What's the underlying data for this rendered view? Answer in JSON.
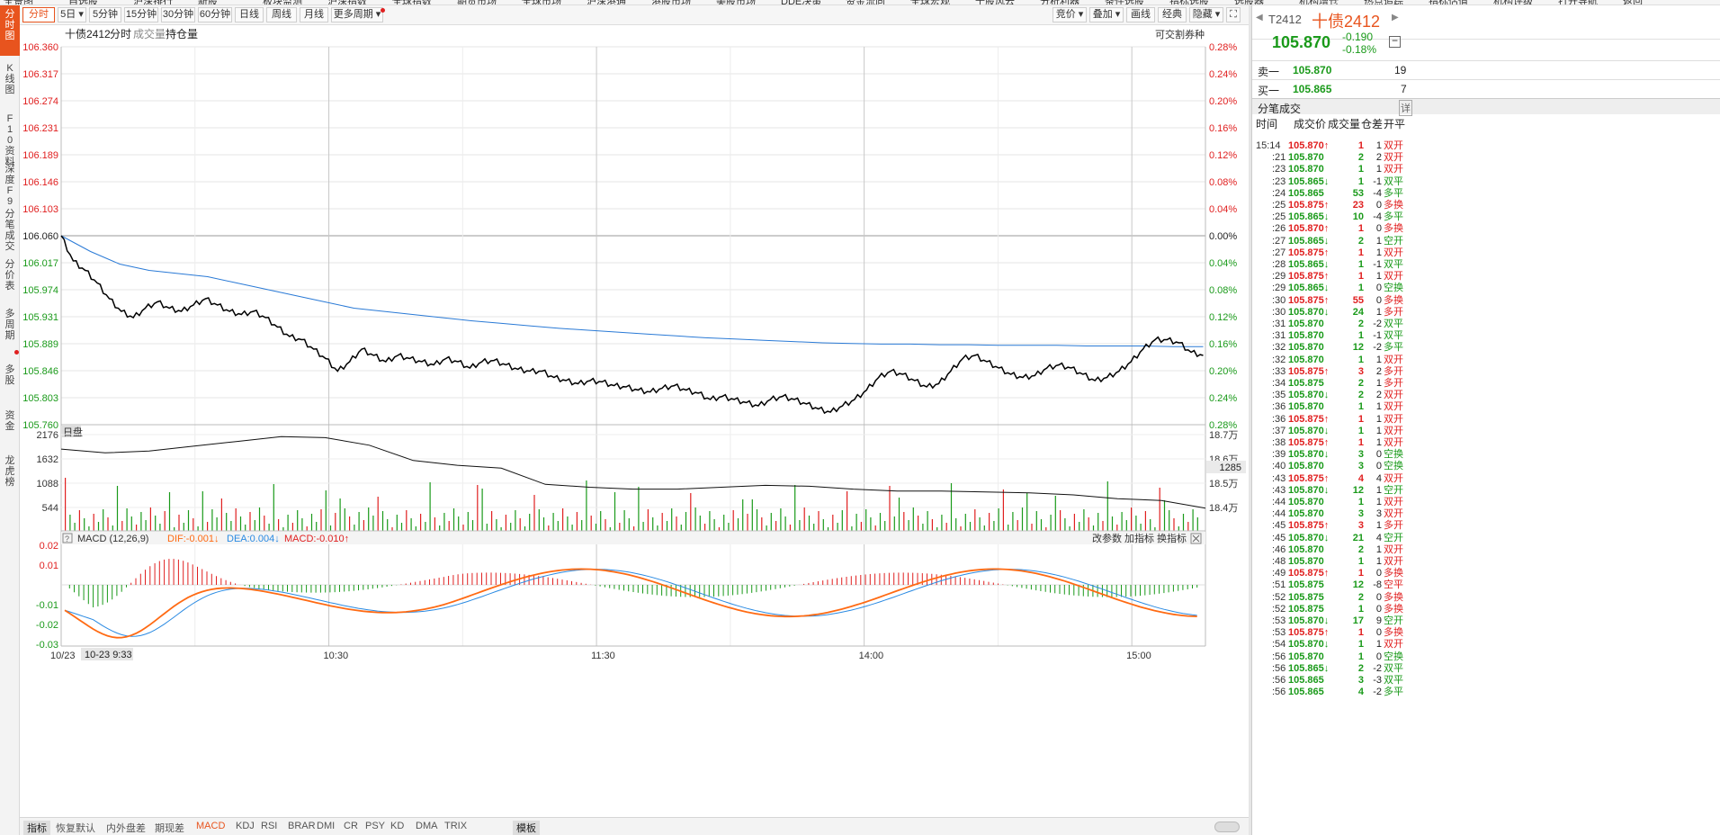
{
  "topbar": {
    "items": [
      "全景图",
      "自选股",
      "沪深排行",
      "新股",
      "板块监测",
      "沪深指数",
      "全球指数",
      "期货市场",
      "全球市场",
      "沪深港通",
      "港股市场",
      "美股市场",
      "DDE决策",
      "资金流向",
      "全球宏观",
      "千股风云",
      "分析利器",
      "条件选股",
      "指标选股",
      "选股器",
      "机构增仓",
      "热点追踪",
      "指标估值",
      "机构评级",
      "打开导航",
      "返回"
    ]
  },
  "sidebar": {
    "items": [
      "分时图",
      "K线图",
      "F10资料",
      "深度F9",
      "分笔成交",
      "分价表",
      "多周期",
      "多股",
      "资金",
      "龙虎榜"
    ],
    "active": "分时图"
  },
  "period_tabs": {
    "items": [
      "分时",
      "5日",
      "5分钟",
      "15分钟",
      "30分钟",
      "60分钟",
      "日线",
      "周线",
      "月线",
      "更多周期"
    ],
    "active": "分时"
  },
  "toolbar_right": {
    "items": [
      "竞价",
      "叠加",
      "画线",
      "经典",
      "隐藏"
    ]
  },
  "chart_header": {
    "symbol": "十债2412",
    "tabs": [
      "分时",
      "成交量",
      "持仓量"
    ],
    "right_label": "可交割券种"
  },
  "colors": {
    "up": "#e02020",
    "down": "#1a9a1a",
    "price_line": "#000000",
    "avg_line": "#2a7ad6",
    "accent": "#e8541e",
    "dif": "#ff6a13",
    "dea": "#2a8ae2"
  },
  "chart_data": [
    {
      "type": "line",
      "name": "intraday-price",
      "x_ticks": [
        "10/23",
        "10:30",
        "11:30",
        "14:00",
        "15:00"
      ],
      "ylim": [
        105.76,
        106.36
      ],
      "y_ticks_left": [
        "106.360",
        "106.317",
        "106.274",
        "106.231",
        "106.189",
        "106.146",
        "106.103",
        "106.060",
        "106.017",
        "105.974",
        "105.931",
        "105.889",
        "105.846",
        "105.803",
        "105.760"
      ],
      "y_ticks_right": [
        "0.28%",
        "0.24%",
        "0.20%",
        "0.16%",
        "0.12%",
        "0.08%",
        "0.04%",
        "0.00%",
        "0.04%",
        "0.08%",
        "0.12%",
        "0.16%",
        "0.20%",
        "0.24%",
        "0.28%"
      ],
      "prev_close": 106.06,
      "series": [
        {
          "values": [
            106.06,
            106.02,
            106.005,
            105.985,
            105.96,
            105.94,
            105.93,
            105.945,
            105.955,
            105.945,
            105.94,
            105.95,
            105.96,
            105.95,
            105.94,
            105.935,
            105.94,
            105.93,
            105.915,
            105.9,
            105.895,
            105.88,
            105.865,
            105.845,
            105.86,
            105.88,
            105.87,
            105.86,
            105.87,
            105.865,
            105.86,
            105.855,
            105.865,
            105.86,
            105.85,
            105.86,
            105.862,
            105.855,
            105.848,
            105.845,
            105.845,
            105.835,
            105.83,
            105.825,
            105.83,
            105.828,
            105.822,
            105.82,
            105.815,
            105.812,
            105.818,
            105.822,
            105.815,
            105.81,
            105.8,
            105.805,
            105.8,
            105.795,
            105.79,
            105.8,
            105.805,
            105.8,
            105.793,
            105.785,
            105.78,
            105.79,
            105.8,
            105.815,
            105.835,
            105.845,
            105.84,
            105.83,
            105.82,
            105.825,
            105.845,
            105.865,
            105.87,
            105.86,
            105.85,
            105.84,
            105.835,
            105.838,
            105.85,
            105.855,
            105.85,
            105.84,
            105.83,
            105.835,
            105.845,
            105.86,
            105.88,
            105.895,
            105.895,
            105.89,
            105.875,
            105.87
          ]
        },
        {
          "values": [
            106.06,
            106.035,
            106.015,
            106.005,
            106.0,
            105.995,
            105.985,
            105.975,
            105.965,
            105.955,
            105.945,
            105.94,
            105.935,
            105.93,
            105.925,
            105.921,
            105.917,
            105.913,
            105.91,
            105.907,
            105.904,
            105.901,
            105.898,
            105.896,
            105.894,
            105.892,
            105.89,
            105.889,
            105.888,
            105.888,
            105.887,
            105.887,
            105.886,
            105.886,
            105.886,
            105.885,
            105.885,
            105.885,
            105.884,
            105.884
          ]
        }
      ]
    },
    {
      "type": "bar",
      "name": "volume",
      "ylim": [
        0,
        2176
      ],
      "y_ticks_left": [
        "2176",
        "1632",
        "1088",
        "544"
      ],
      "y_ticks_right": [
        "18.7万",
        "18.6万",
        "18.5万",
        "18.4万"
      ],
      "open_interest_label": "1285",
      "legend": "日盘"
    },
    {
      "type": "bar",
      "name": "macd",
      "title": "MACD (12,26,9)",
      "dif_label": "DIF:-0.001",
      "dea_label": "DEA:0.004",
      "macd_label": "MACD:-0.010",
      "right_buttons": [
        "改参数",
        "加指标",
        "换指标"
      ],
      "ylim": [
        -0.03,
        0.02
      ],
      "y_ticks_left": [
        "0.02",
        "0.01",
        "-0.01",
        "-0.02",
        "-0.03"
      ]
    }
  ],
  "x_cursor_label": "10-23 9:33",
  "bottom_tabs": {
    "items": [
      "指标",
      "恢复默认",
      "内外盘差",
      "期现差",
      "MACD",
      "KDJ",
      "RSI",
      "BRAR",
      "DMI",
      "CR",
      "PSY",
      "KD",
      "DMA",
      "TRIX",
      "模板"
    ],
    "active": "MACD"
  },
  "quote": {
    "code": "T2412",
    "name": "十债2412",
    "price": "105.870",
    "change": "-0.190",
    "change_pct": "-0.18%",
    "ask_label": "卖一",
    "ask_price": "105.870",
    "ask_vol": "19",
    "bid_label": "买一",
    "bid_price": "105.865",
    "bid_vol": "7",
    "ticks_title": "分笔成交",
    "detail_label": "详",
    "columns": [
      "时间",
      "成交价",
      "成交量",
      "仓差",
      "开平"
    ]
  },
  "ticks": [
    [
      "15:14",
      "105.870",
      "up",
      "1",
      "1",
      "双开",
      "r"
    ],
    [
      ":21",
      "105.870",
      "",
      "2",
      "2",
      "双开",
      "r"
    ],
    [
      ":23",
      "105.870",
      "",
      "1",
      "1",
      "双开",
      "r"
    ],
    [
      ":23",
      "105.865",
      "dn",
      "1",
      "-1",
      "双平",
      "g"
    ],
    [
      ":24",
      "105.865",
      "",
      "53",
      "-4",
      "多平",
      "g"
    ],
    [
      ":25",
      "105.875",
      "up",
      "23",
      "0",
      "多换",
      "r"
    ],
    [
      ":25",
      "105.865",
      "dn",
      "10",
      "-4",
      "多平",
      "g"
    ],
    [
      ":26",
      "105.870",
      "up",
      "1",
      "0",
      "多换",
      "r"
    ],
    [
      ":27",
      "105.865",
      "dn",
      "2",
      "1",
      "空开",
      "g"
    ],
    [
      ":27",
      "105.875",
      "up",
      "1",
      "1",
      "双开",
      "r"
    ],
    [
      ":28",
      "105.865",
      "dn",
      "1",
      "-1",
      "双平",
      "g"
    ],
    [
      ":29",
      "105.875",
      "up",
      "1",
      "1",
      "双开",
      "r"
    ],
    [
      ":29",
      "105.865",
      "dn",
      "1",
      "0",
      "空换",
      "g"
    ],
    [
      ":30",
      "105.875",
      "up",
      "55",
      "0",
      "多换",
      "r"
    ],
    [
      ":30",
      "105.870",
      "dn",
      "24",
      "1",
      "多开",
      "r"
    ],
    [
      ":31",
      "105.870",
      "",
      "2",
      "-2",
      "双平",
      "g"
    ],
    [
      ":31",
      "105.870",
      "",
      "1",
      "-1",
      "双平",
      "g"
    ],
    [
      ":32",
      "105.870",
      "",
      "12",
      "-2",
      "多平",
      "g"
    ],
    [
      ":32",
      "105.870",
      "",
      "1",
      "1",
      "双开",
      "r"
    ],
    [
      ":33",
      "105.875",
      "up",
      "3",
      "2",
      "多开",
      "r"
    ],
    [
      ":34",
      "105.875",
      "",
      "2",
      "1",
      "多开",
      "r"
    ],
    [
      ":35",
      "105.870",
      "dn",
      "2",
      "2",
      "双开",
      "r"
    ],
    [
      ":36",
      "105.870",
      "",
      "1",
      "1",
      "双开",
      "r"
    ],
    [
      ":36",
      "105.875",
      "up",
      "1",
      "1",
      "双开",
      "r"
    ],
    [
      ":37",
      "105.870",
      "dn",
      "1",
      "1",
      "双开",
      "r"
    ],
    [
      ":38",
      "105.875",
      "up",
      "1",
      "1",
      "双开",
      "r"
    ],
    [
      ":39",
      "105.870",
      "dn",
      "3",
      "0",
      "空换",
      "g"
    ],
    [
      ":40",
      "105.870",
      "",
      "3",
      "0",
      "空换",
      "g"
    ],
    [
      ":43",
      "105.875",
      "up",
      "4",
      "4",
      "双开",
      "r"
    ],
    [
      ":43",
      "105.870",
      "dn",
      "12",
      "1",
      "空开",
      "g"
    ],
    [
      ":44",
      "105.870",
      "",
      "1",
      "1",
      "双开",
      "r"
    ],
    [
      ":44",
      "105.870",
      "",
      "3",
      "3",
      "双开",
      "r"
    ],
    [
      ":45",
      "105.875",
      "up",
      "3",
      "1",
      "多开",
      "r"
    ],
    [
      ":45",
      "105.870",
      "dn",
      "21",
      "4",
      "空开",
      "g"
    ],
    [
      ":46",
      "105.870",
      "",
      "2",
      "1",
      "双开",
      "r"
    ],
    [
      ":48",
      "105.870",
      "",
      "1",
      "1",
      "双开",
      "r"
    ],
    [
      ":49",
      "105.875",
      "up",
      "1",
      "0",
      "多换",
      "r"
    ],
    [
      ":51",
      "105.875",
      "",
      "12",
      "-8",
      "空平",
      "r"
    ],
    [
      ":52",
      "105.875",
      "",
      "2",
      "0",
      "多换",
      "r"
    ],
    [
      ":52",
      "105.875",
      "",
      "1",
      "0",
      "多换",
      "r"
    ],
    [
      ":53",
      "105.870",
      "dn",
      "17",
      "9",
      "空开",
      "g"
    ],
    [
      ":53",
      "105.875",
      "up",
      "1",
      "0",
      "多换",
      "r"
    ],
    [
      ":54",
      "105.870",
      "dn",
      "1",
      "1",
      "双开",
      "r"
    ],
    [
      ":56",
      "105.870",
      "",
      "1",
      "0",
      "空换",
      "g"
    ],
    [
      ":56",
      "105.865",
      "dn",
      "2",
      "-2",
      "双平",
      "g"
    ],
    [
      ":56",
      "105.865",
      "",
      "3",
      "-3",
      "双平",
      "g"
    ],
    [
      ":56",
      "105.865",
      "",
      "4",
      "-2",
      "多平",
      "g"
    ]
  ]
}
